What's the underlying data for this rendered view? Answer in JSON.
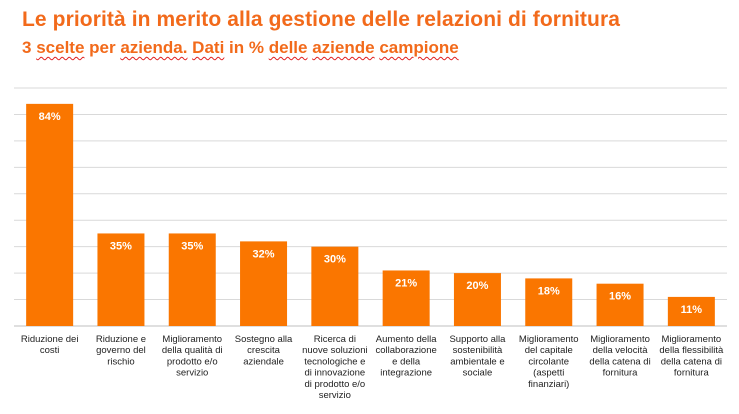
{
  "chart_data": {
    "type": "bar",
    "title": "Le priorità in merito alla gestione delle relazioni di fornitura",
    "subtitle_parts": [
      "3",
      "scelte",
      "per",
      "azienda.",
      "Dati",
      "in",
      "%",
      "delle",
      "aziende",
      "campione"
    ],
    "categories": [
      [
        "Riduzione dei",
        "costi"
      ],
      [
        "Riduzione e",
        "governo del",
        "rischio"
      ],
      [
        "Miglioramento",
        "della qualità di",
        "prodotto e/o",
        "servizio"
      ],
      [
        "Sostegno alla",
        "crescita",
        "aziendale"
      ],
      [
        "Ricerca di",
        "nuove soluzioni",
        "tecnologiche e",
        "di innovazione",
        "di prodotto e/o",
        "servizio"
      ],
      [
        "Aumento della",
        "collaborazione",
        "e della",
        "integrazione"
      ],
      [
        "Supporto alla",
        "sostenibilità",
        "ambientale e",
        "sociale"
      ],
      [
        "Miglioramento",
        "del capitale",
        "circolante",
        "(aspetti",
        "finanziari)"
      ],
      [
        "Miglioramento",
        "della velocità",
        "della catena di",
        "fornitura"
      ],
      [
        "Miglioramento",
        "della flessibilità",
        "della catena di",
        "fornitura"
      ]
    ],
    "values": [
      84,
      35,
      35,
      32,
      30,
      21,
      20,
      18,
      16,
      11
    ],
    "value_labels": [
      "84%",
      "35%",
      "35%",
      "32%",
      "30%",
      "21%",
      "20%",
      "18%",
      "16%",
      "11%"
    ],
    "ylim": [
      0,
      90
    ],
    "grid": true,
    "bar_color": "#fa7600"
  }
}
